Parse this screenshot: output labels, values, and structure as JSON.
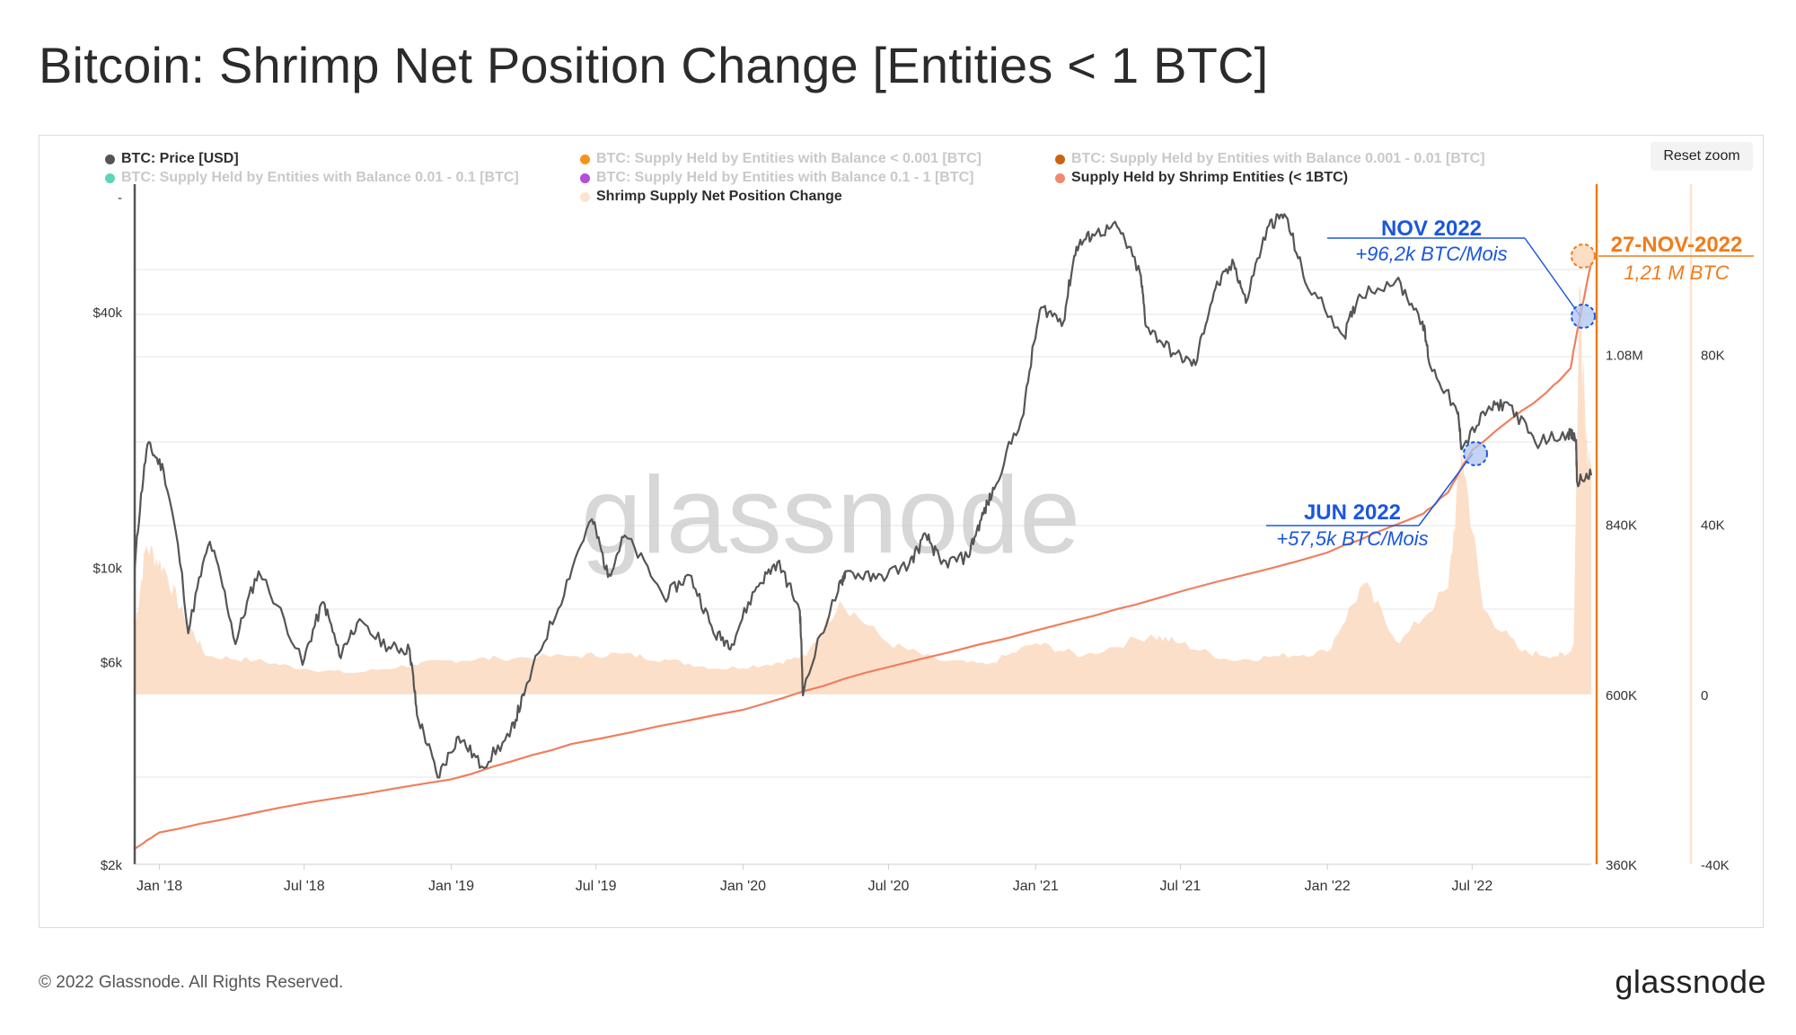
{
  "page": {
    "title": "Bitcoin: Shrimp Net Position Change [Entities < 1 BTC]",
    "reset_zoom": "Reset zoom",
    "footer_copyright": "© 2022 Glassnode. All Rights Reserved.",
    "footer_logo": "glassnode",
    "watermark": "glassnode"
  },
  "legend": [
    {
      "label": "BTC: Price [USD]",
      "color": "#555555",
      "active": true
    },
    {
      "label": "BTC: Supply Held by Entities with Balance < 0.001 [BTC]",
      "color": "#f7931a",
      "active": false
    },
    {
      "label": "BTC: Supply Held by Entities with Balance 0.001 - 0.01 [BTC]",
      "color": "#c8640f",
      "active": false
    },
    {
      "label": "BTC: Supply Held by Entities with Balance 0.01 - 0.1 [BTC]",
      "color": "#5cd6b5",
      "active": false
    },
    {
      "label": "BTC: Supply Held by Entities with Balance 0.1 - 1 [BTC]",
      "color": "#b44ddb",
      "active": false
    },
    {
      "label": "Supply Held by Shrimp Entities (< 1BTC)",
      "color": "#f08a6c",
      "active": true
    },
    {
      "label": "Shrimp Supply Net Position Change",
      "color": "#fde3d0",
      "active": true
    }
  ],
  "annotations": {
    "nov_title": "NOV 2022",
    "nov_value": "+96,2k BTC/Mois",
    "jun_title": "JUN 2022",
    "jun_value": "+57,5k BTC/Mois",
    "last_date": "27-NOV-2022",
    "last_value": "1,21 M BTC"
  },
  "colors": {
    "price": "#555555",
    "supply": "#ef7f5e",
    "net_change_fill": "#fcd9c0",
    "nov_annotation": "#1a56e0",
    "last_annotation": "#f07c1a",
    "right_axis_line": "#f07c1a"
  },
  "chart_data": {
    "type": "line",
    "title": "Bitcoin: Shrimp Net Position Change [Entities < 1 BTC]",
    "x_ticks": [
      "Jan '18",
      "Jul '18",
      "Jan '19",
      "Jul '19",
      "Jan '20",
      "Jul '20",
      "Jan '21",
      "Jul '21",
      "Jan '22",
      "Jul '22"
    ],
    "y_price_ticks": [
      "-",
      "$40k",
      "$10k",
      "$6k",
      "$2k"
    ],
    "y_price_scale": "log",
    "y_price_range": [
      2000,
      80000
    ],
    "y_supply_ticks": [
      "1.08M",
      "840K",
      "600K",
      "360K"
    ],
    "y_supply_range": [
      360000,
      1320000
    ],
    "y_change_ticks": [
      "80K",
      "40K",
      "0",
      "-40K"
    ],
    "y_change_range": [
      -40000,
      120000
    ],
    "x_range": [
      "2017-12-01",
      "2022-11-27"
    ],
    "series": [
      {
        "name": "BTC: Price [USD]",
        "axis": "price",
        "x": [
          "2017-12-01",
          "2017-12-17",
          "2018-01-06",
          "2018-02-06",
          "2018-03-05",
          "2018-04-06",
          "2018-05-05",
          "2018-06-29",
          "2018-07-25",
          "2018-08-14",
          "2018-09-05",
          "2018-10-15",
          "2018-11-10",
          "2018-11-19",
          "2018-12-15",
          "2019-01-10",
          "2019-02-08",
          "2019-03-15",
          "2019-04-02",
          "2019-05-15",
          "2019-06-26",
          "2019-07-16",
          "2019-08-06",
          "2019-09-24",
          "2019-10-26",
          "2019-11-25",
          "2019-12-18",
          "2020-01-18",
          "2020-02-13",
          "2020-03-12",
          "2020-03-16",
          "2020-04-29",
          "2020-05-08",
          "2020-06-15",
          "2020-07-27",
          "2020-08-17",
          "2020-09-05",
          "2020-10-08",
          "2020-10-25",
          "2020-11-10",
          "2020-12-17",
          "2021-01-08",
          "2021-02-05",
          "2021-02-21",
          "2021-03-13",
          "2021-04-13",
          "2021-05-12",
          "2021-05-19",
          "2021-06-22",
          "2021-07-20",
          "2021-08-14",
          "2021-09-06",
          "2021-09-21",
          "2021-10-20",
          "2021-11-08",
          "2021-12-04",
          "2022-01-22",
          "2022-02-10",
          "2022-03-28",
          "2022-04-30",
          "2022-05-09",
          "2022-06-13",
          "2022-06-18",
          "2022-07-20",
          "2022-08-14",
          "2022-09-18",
          "2022-10-29",
          "2022-11-08",
          "2022-11-09",
          "2022-11-27"
        ],
        "values": [
          9900,
          19500,
          17000,
          7000,
          11500,
          6600,
          9800,
          5900,
          8300,
          6200,
          7400,
          6500,
          6400,
          4500,
          3200,
          4000,
          3400,
          4000,
          5000,
          8000,
          13000,
          9500,
          11900,
          8500,
          9600,
          7000,
          6600,
          9000,
          10300,
          7900,
          5000,
          8800,
          9800,
          9400,
          10200,
          11900,
          10200,
          10600,
          13000,
          15300,
          23000,
          41000,
          38000,
          57000,
          61000,
          63500,
          49000,
          37000,
          32000,
          30000,
          45500,
          52000,
          42000,
          64000,
          68000,
          47000,
          35000,
          44000,
          47500,
          38000,
          30000,
          23000,
          19000,
          23500,
          24500,
          19700,
          20800,
          20000,
          16000,
          16500
        ]
      },
      {
        "name": "Supply Held by Shrimp Entities (< 1BTC)",
        "axis": "supply",
        "x": [
          "2017-12-01",
          "2018-01-01",
          "2018-06-01",
          "2019-01-01",
          "2019-06-01",
          "2020-01-01",
          "2020-06-01",
          "2021-01-01",
          "2021-06-01",
          "2022-01-01",
          "2022-05-01",
          "2022-06-01",
          "2022-07-01",
          "2022-10-01",
          "2022-11-01",
          "2022-11-09",
          "2022-11-27"
        ],
        "values": [
          382000,
          405000,
          440000,
          480000,
          530000,
          578000,
          630000,
          690000,
          735000,
          800000,
          855000,
          885000,
          945000,
          1025000,
          1060000,
          1110000,
          1210000
        ]
      },
      {
        "name": "Shrimp Supply Net Position Change",
        "axis": "change",
        "x": [
          "2017-12-01",
          "2017-12-15",
          "2018-01-06",
          "2018-02-01",
          "2018-03-01",
          "2018-05-01",
          "2018-07-01",
          "2018-09-01",
          "2018-11-15",
          "2019-01-01",
          "2019-03-01",
          "2019-06-01",
          "2019-08-01",
          "2019-10-01",
          "2019-12-01",
          "2020-02-01",
          "2020-03-20",
          "2020-05-01",
          "2020-07-01",
          "2020-09-01",
          "2020-11-01",
          "2021-01-01",
          "2021-03-01",
          "2021-05-25",
          "2021-07-01",
          "2021-09-01",
          "2021-11-01",
          "2022-01-01",
          "2022-02-15",
          "2022-04-01",
          "2022-06-01",
          "2022-06-18",
          "2022-07-15",
          "2022-09-01",
          "2022-10-15",
          "2022-11-01",
          "2022-11-05",
          "2022-11-12",
          "2022-11-20",
          "2022-11-27"
        ],
        "values": [
          15000,
          35000,
          30000,
          18000,
          9000,
          8000,
          6000,
          5000,
          7000,
          8000,
          8500,
          9000,
          9500,
          8000,
          6000,
          7000,
          9000,
          22000,
          12000,
          8000,
          7000,
          12000,
          9000,
          14000,
          12000,
          8000,
          9000,
          10000,
          26000,
          12000,
          25000,
          57500,
          20000,
          10000,
          9000,
          10000,
          12000,
          96200,
          60000,
          55000
        ]
      }
    ],
    "grid": true,
    "legend_position": "top"
  }
}
